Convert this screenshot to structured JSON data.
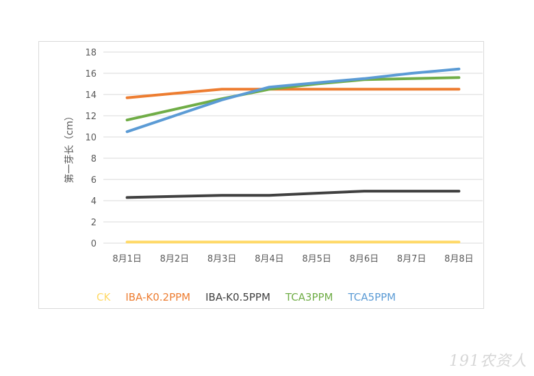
{
  "chart_data": {
    "type": "line",
    "title": "",
    "xlabel": "",
    "ylabel": "第一芽长（cm）",
    "categories": [
      "8月1日",
      "8月2日",
      "8月3日",
      "8月4日",
      "8月5日",
      "8月6日",
      "8月7日",
      "8月8日"
    ],
    "ylim": [
      0,
      18
    ],
    "yticks": [
      0,
      2,
      4,
      6,
      8,
      10,
      12,
      14,
      16,
      18
    ],
    "grid": true,
    "legend_position": "bottom",
    "series": [
      {
        "name": "CK",
        "color": "#ffd966",
        "values": [
          0.1,
          0.1,
          0.1,
          0.1,
          0.1,
          0.1,
          0.1,
          0.1
        ]
      },
      {
        "name": "IBA-K0.2PPM",
        "color": "#ed7d31",
        "values": [
          13.7,
          14.1,
          14.5,
          14.5,
          14.5,
          14.5,
          14.5,
          14.5
        ]
      },
      {
        "name": "IBA-K0.5PPM",
        "color": "#404040",
        "values": [
          4.3,
          4.4,
          4.5,
          4.5,
          4.7,
          4.9,
          4.9,
          4.9
        ]
      },
      {
        "name": "TCA3PPM",
        "color": "#70ad47",
        "values": [
          11.6,
          12.6,
          13.6,
          14.5,
          15.0,
          15.4,
          15.5,
          15.6
        ]
      },
      {
        "name": "TCA5PPM",
        "color": "#5b9bd5",
        "values": [
          10.5,
          12.0,
          13.5,
          14.7,
          15.1,
          15.5,
          16.0,
          16.4
        ]
      }
    ]
  },
  "watermark": "191农资人"
}
